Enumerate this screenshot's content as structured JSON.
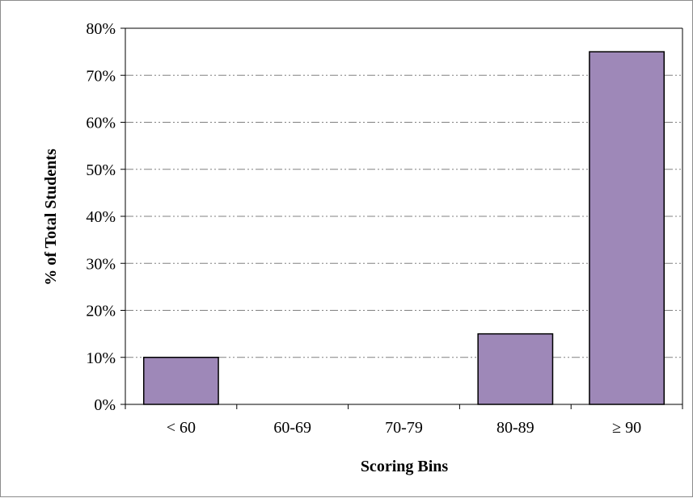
{
  "chart_data": {
    "type": "bar",
    "title": "",
    "xlabel": "Scoring Bins",
    "ylabel": "% of Total Students",
    "categories": [
      "< 60",
      "60-69",
      "70-79",
      "80-89",
      "≥ 90"
    ],
    "values": [
      10,
      0,
      0,
      15,
      75
    ],
    "value_unit": "%",
    "ylim": [
      0,
      80
    ],
    "yticks": [
      "0%",
      "10%",
      "20%",
      "30%",
      "40%",
      "50%",
      "60%",
      "70%",
      "80%"
    ],
    "grid": true,
    "legend": "none",
    "colors": {
      "bar_fill": "#9e88b8",
      "bar_stroke": "#000000",
      "gridline": "#808080"
    }
  }
}
